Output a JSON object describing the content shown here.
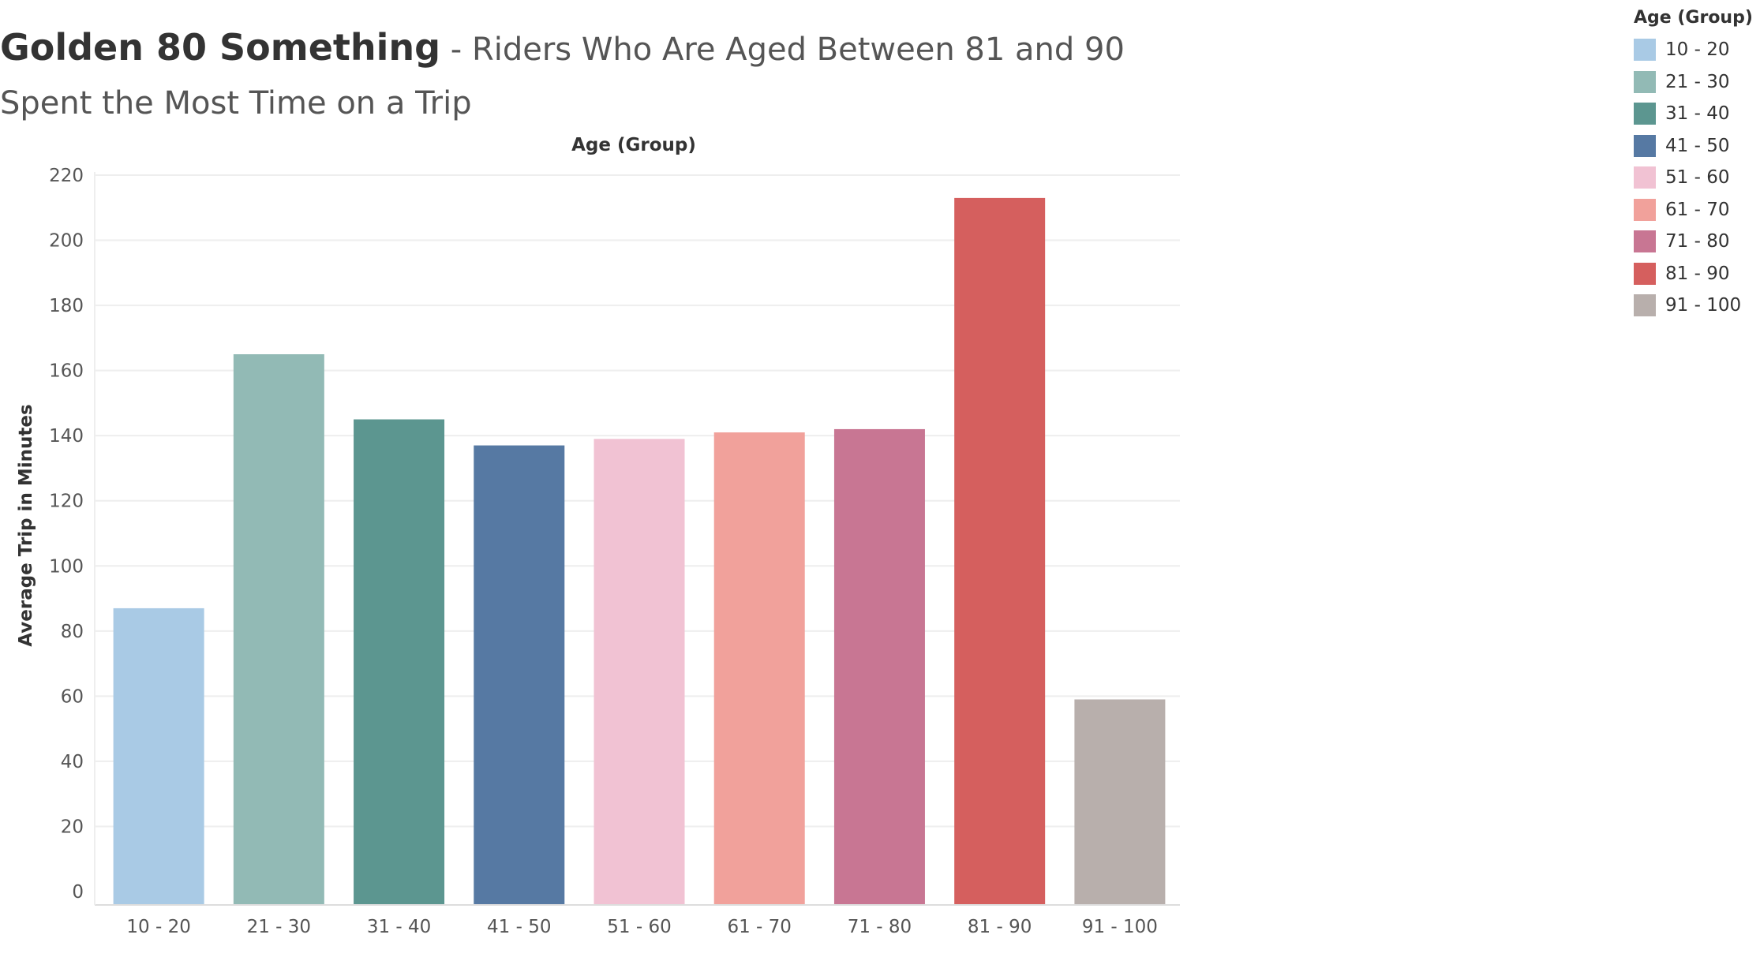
{
  "title": {
    "main": "Golden 80 Something",
    "sub": " - Riders Who Are Aged Between 81 and 90 Spent the Most Time on a Trip"
  },
  "legend": {
    "title": "Age (Group)",
    "items": [
      {
        "label": "10 - 20",
        "color": "#a9cae5"
      },
      {
        "label": "21 - 30",
        "color": "#92bab5"
      },
      {
        "label": "31 - 40",
        "color": "#5c9690"
      },
      {
        "label": "41 - 50",
        "color": "#5679a3"
      },
      {
        "label": "51 - 60",
        "color": "#f1c2d3"
      },
      {
        "label": "61 - 70",
        "color": "#f1a19b"
      },
      {
        "label": "71 - 80",
        "color": "#c87693"
      },
      {
        "label": "81 - 90",
        "color": "#d55f5e"
      },
      {
        "label": "91 - 100",
        "color": "#b8afac"
      }
    ]
  },
  "chart_data": {
    "type": "bar",
    "title": "",
    "xlabel": "Age (Group)",
    "ylabel": "Average Trip in Minutes",
    "ylim": [
      0,
      220
    ],
    "yticks": [
      0,
      20,
      40,
      60,
      80,
      100,
      120,
      140,
      160,
      180,
      200,
      220
    ],
    "categories": [
      "10 - 20",
      "21 - 30",
      "31 - 40",
      "41 - 50",
      "51 - 60",
      "61 - 70",
      "71 - 80",
      "81 - 90",
      "91 - 100"
    ],
    "values": [
      87,
      165,
      145,
      137,
      139,
      141,
      142,
      213,
      59
    ],
    "colors": [
      "#a9cae5",
      "#92bab5",
      "#5c9690",
      "#5679a3",
      "#f1c2d3",
      "#f1a19b",
      "#c87693",
      "#d55f5e",
      "#b8afac"
    ],
    "grid": true,
    "legend_position": "top-right"
  }
}
